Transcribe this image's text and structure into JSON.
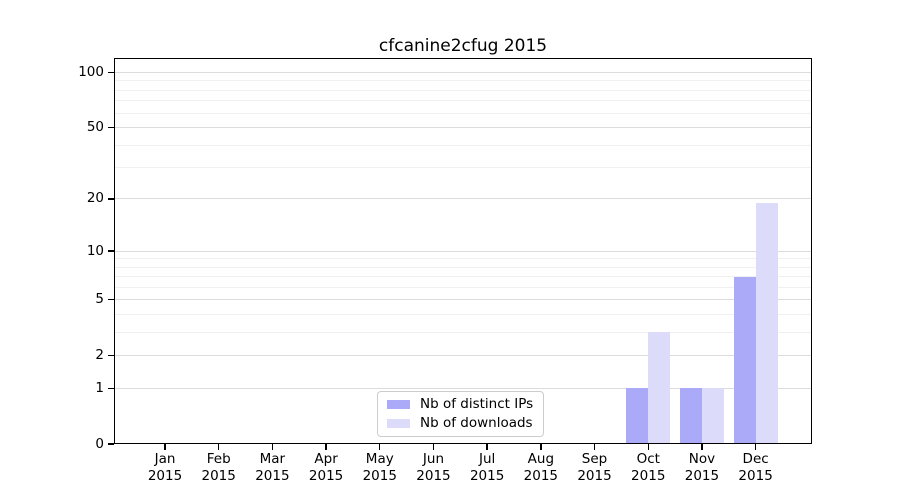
{
  "title": "cfcanine2cfug 2015",
  "colors": {
    "distinct_ips": "#aaaaf8",
    "downloads": "#dcdcfa",
    "grid_major": "#dcdcdc",
    "grid_minor": "#f0f0f0",
    "spine": "#000000",
    "legend_border": "#cccccc",
    "text": "#000000"
  },
  "legend": {
    "items": [
      {
        "label": "Nb of distinct IPs",
        "color": "#aaaaf8"
      },
      {
        "label": "Nb of downloads",
        "color": "#dcdcfa"
      }
    ]
  },
  "chart_data": {
    "type": "bar",
    "title": "cfcanine2cfug 2015",
    "categories": [
      "Jan",
      "Feb",
      "Mar",
      "Apr",
      "May",
      "Jun",
      "Jul",
      "Aug",
      "Sep",
      "Oct",
      "Nov",
      "Dec"
    ],
    "category_year": "2015",
    "series": [
      {
        "name": "Nb of distinct IPs",
        "color": "#aaaaf8",
        "values": [
          0,
          0,
          0,
          0,
          0,
          0,
          0,
          0,
          0,
          1,
          1,
          7
        ]
      },
      {
        "name": "Nb of downloads",
        "color": "#dcdcfa",
        "values": [
          0,
          0,
          0,
          0,
          0,
          0,
          0,
          0,
          0,
          3,
          1,
          19
        ]
      }
    ],
    "xlabel": "",
    "ylabel": "",
    "yscale": "log1p",
    "ylim": [
      0,
      120
    ],
    "yticks": [
      0,
      1,
      2,
      5,
      10,
      20,
      50,
      100
    ],
    "yticks_minor": [
      3,
      4,
      6,
      7,
      8,
      9,
      30,
      40,
      60,
      70,
      80,
      90
    ],
    "grid": true,
    "legend_position": "lower center"
  }
}
